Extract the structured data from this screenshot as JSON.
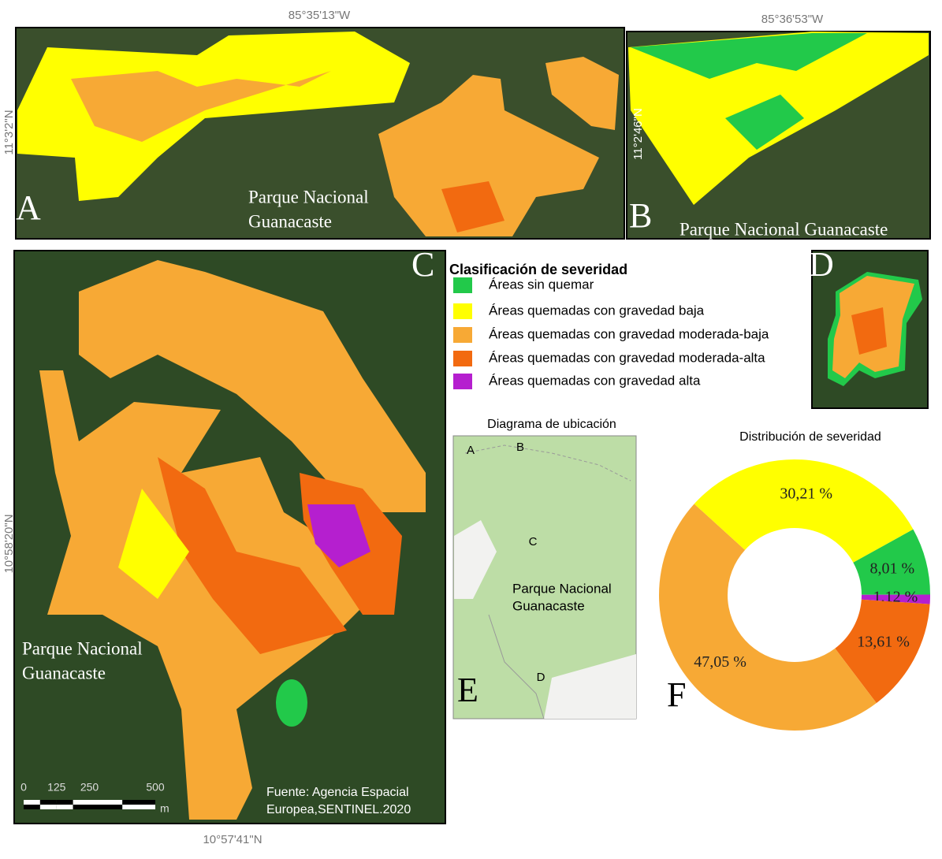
{
  "panels": {
    "a": {
      "label": "A",
      "longitude": "85°35'13\"W",
      "latitude": "11°3'2\"N",
      "place": [
        "Parque Nacional",
        "Guanacaste"
      ]
    },
    "b": {
      "label": "B",
      "longitude": "85°36'53\"W",
      "latitude": "11°2'46\"N",
      "place": "Parque Nacional Guanacaste"
    },
    "c": {
      "label": "C",
      "latitude": "10°58'20\"N",
      "longitude": "10°57'41\"N",
      "place": [
        "Parque Nacional",
        "Guanacaste"
      ],
      "scale": {
        "ticks": [
          0,
          125,
          250,
          500
        ],
        "unit": "m"
      },
      "source": [
        "Fuente: Agencia Espacial",
        "Europea,SENTINEL.2020"
      ]
    },
    "d": {
      "label": "D"
    },
    "e": {
      "label": "E",
      "title": "Diagrama de ubicación",
      "markers": [
        "A",
        "B",
        "C",
        "D"
      ],
      "place": [
        "Parque Nacional",
        "Guanacaste"
      ]
    }
  },
  "legend": {
    "title": "Clasificación de severidad",
    "items": [
      {
        "label": "Áreas sin quemar",
        "color": "#22c94a"
      },
      {
        "label": "Áreas quemadas con gravedad baja",
        "color": "#ffff00"
      },
      {
        "label": "Áreas quemadas con gravedad moderada-baja",
        "color": "#f7a935"
      },
      {
        "label": "Áreas quemadas con gravedad moderada-alta",
        "color": "#f26a10"
      },
      {
        "label": "Áreas quemadas con gravedad alta",
        "color": "#b51fcf"
      }
    ]
  },
  "chart_data": {
    "type": "donut",
    "title": "Distribución de severidad",
    "panel_label": "F",
    "values": [
      8.01,
      1.12,
      13.61,
      47.05,
      30.21
    ],
    "value_labels": [
      "8,01 %",
      "1,12 %",
      "13,61 %",
      "47,05 %",
      "30,21 %"
    ],
    "colors": [
      "#22c94a",
      "#b51fcf",
      "#f26a10",
      "#f7a935",
      "#ffff00"
    ]
  }
}
